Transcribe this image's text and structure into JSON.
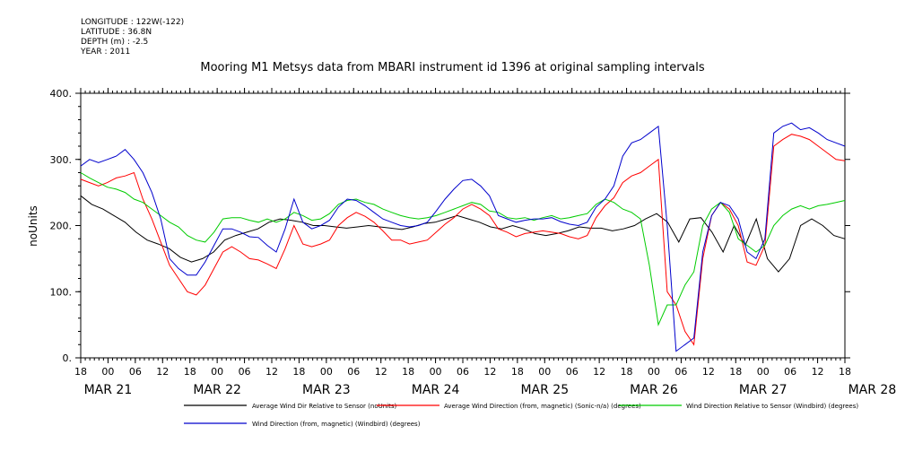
{
  "header": {
    "meta_lines": [
      "LONGITUDE : 122W(-122)",
      "LATITUDE : 36.8N",
      "DEPTH (m) : -2.5",
      "YEAR : 2011"
    ],
    "title": "Mooring M1 Metsys data from MBARI instrument id 1396 at original sampling intervals"
  },
  "chart_data": {
    "type": "line",
    "title": "Mooring M1 Metsys data from MBARI instrument id 1396 at original sampling intervals",
    "ylabel": "noUnits",
    "xlabel": "",
    "ylim": [
      0,
      400
    ],
    "yticks": [
      "0.",
      "100.",
      "200.",
      "300.",
      "400."
    ],
    "hour_ticks": [
      "18",
      "00",
      "06",
      "12",
      "18",
      "00",
      "06",
      "12",
      "18",
      "00",
      "06",
      "12",
      "18",
      "00",
      "06",
      "12",
      "18",
      "00",
      "06",
      "12",
      "18",
      "00",
      "06",
      "12",
      "18",
      "00",
      "06",
      "12",
      "18"
    ],
    "day_labels": [
      "MAR 21",
      "MAR 22",
      "MAR 23",
      "MAR 24",
      "MAR 25",
      "MAR 26",
      "MAR 27",
      "MAR 28"
    ],
    "x_start": "2011-03-21 18:00",
    "x_end": "2011-03-28 18:00",
    "grid": false,
    "legend_position": "bottom",
    "series": [
      {
        "name": "Average Wind Dir Relative to Sensor (noUnits)",
        "color": "#000000",
        "values": [
          245,
          232,
          225,
          215,
          205,
          190,
          178,
          172,
          165,
          152,
          145,
          150,
          160,
          178,
          185,
          190,
          195,
          205,
          210,
          208,
          205,
          200,
          200,
          198,
          196,
          198,
          200,
          198,
          196,
          194,
          198,
          203,
          205,
          210,
          215,
          210,
          205,
          198,
          195,
          200,
          195,
          188,
          185,
          188,
          192,
          198,
          196,
          196,
          192,
          195,
          200,
          210,
          218,
          205,
          175,
          210,
          212,
          190,
          160,
          200,
          170,
          210,
          150,
          130,
          150,
          200,
          210,
          200,
          185,
          180
        ]
      },
      {
        "name": "Average Wind Direction (from, magnetic) (Sonic-n/a) (degrees)",
        "color": "#ff0000",
        "values": [
          270,
          265,
          260,
          265,
          272,
          275,
          280,
          240,
          210,
          175,
          140,
          120,
          100,
          95,
          110,
          135,
          160,
          168,
          160,
          150,
          148,
          142,
          135,
          165,
          200,
          172,
          168,
          172,
          178,
          200,
          212,
          220,
          214,
          205,
          192,
          178,
          178,
          172,
          175,
          178,
          190,
          202,
          212,
          225,
          232,
          225,
          215,
          195,
          190,
          183,
          188,
          190,
          192,
          190,
          188,
          183,
          180,
          185,
          212,
          230,
          242,
          265,
          275,
          280,
          290,
          300,
          100,
          80,
          40,
          20,
          150,
          215,
          235,
          225,
          200,
          145,
          140,
          170,
          320,
          330,
          338,
          335,
          330,
          320,
          310,
          300,
          298
        ]
      },
      {
        "name": "Wind Direction Relative to Sensor (Windbird) (degrees)",
        "color": "#00cc00",
        "values": [
          280,
          272,
          265,
          258,
          255,
          250,
          240,
          235,
          225,
          215,
          205,
          198,
          185,
          178,
          175,
          190,
          210,
          212,
          212,
          208,
          205,
          210,
          205,
          210,
          220,
          215,
          208,
          210,
          218,
          232,
          238,
          240,
          235,
          232,
          225,
          220,
          215,
          212,
          210,
          212,
          215,
          220,
          225,
          230,
          235,
          232,
          222,
          220,
          212,
          210,
          212,
          208,
          212,
          215,
          210,
          212,
          215,
          218,
          232,
          240,
          235,
          225,
          220,
          210,
          140,
          50,
          80,
          80,
          110,
          130,
          200,
          225,
          235,
          220,
          180,
          170,
          160,
          170,
          200,
          215,
          225,
          230,
          225,
          230,
          232,
          235,
          238
        ]
      },
      {
        "name": "Wind Direction (from, magnetic) (Windbird) (degrees)",
        "color": "#0000cc",
        "values": [
          290,
          300,
          295,
          300,
          305,
          315,
          300,
          280,
          250,
          210,
          150,
          135,
          125,
          125,
          145,
          170,
          195,
          195,
          190,
          183,
          182,
          170,
          160,
          195,
          240,
          205,
          195,
          200,
          208,
          228,
          240,
          238,
          230,
          220,
          210,
          205,
          200,
          198,
          200,
          205,
          222,
          240,
          255,
          268,
          270,
          260,
          245,
          215,
          210,
          205,
          208,
          210,
          210,
          212,
          206,
          202,
          200,
          205,
          228,
          240,
          260,
          305,
          325,
          330,
          340,
          350,
          200,
          10,
          20,
          30,
          160,
          215,
          235,
          230,
          210,
          160,
          150,
          180,
          340,
          350,
          355,
          345,
          348,
          340,
          330,
          325,
          320
        ]
      }
    ]
  }
}
